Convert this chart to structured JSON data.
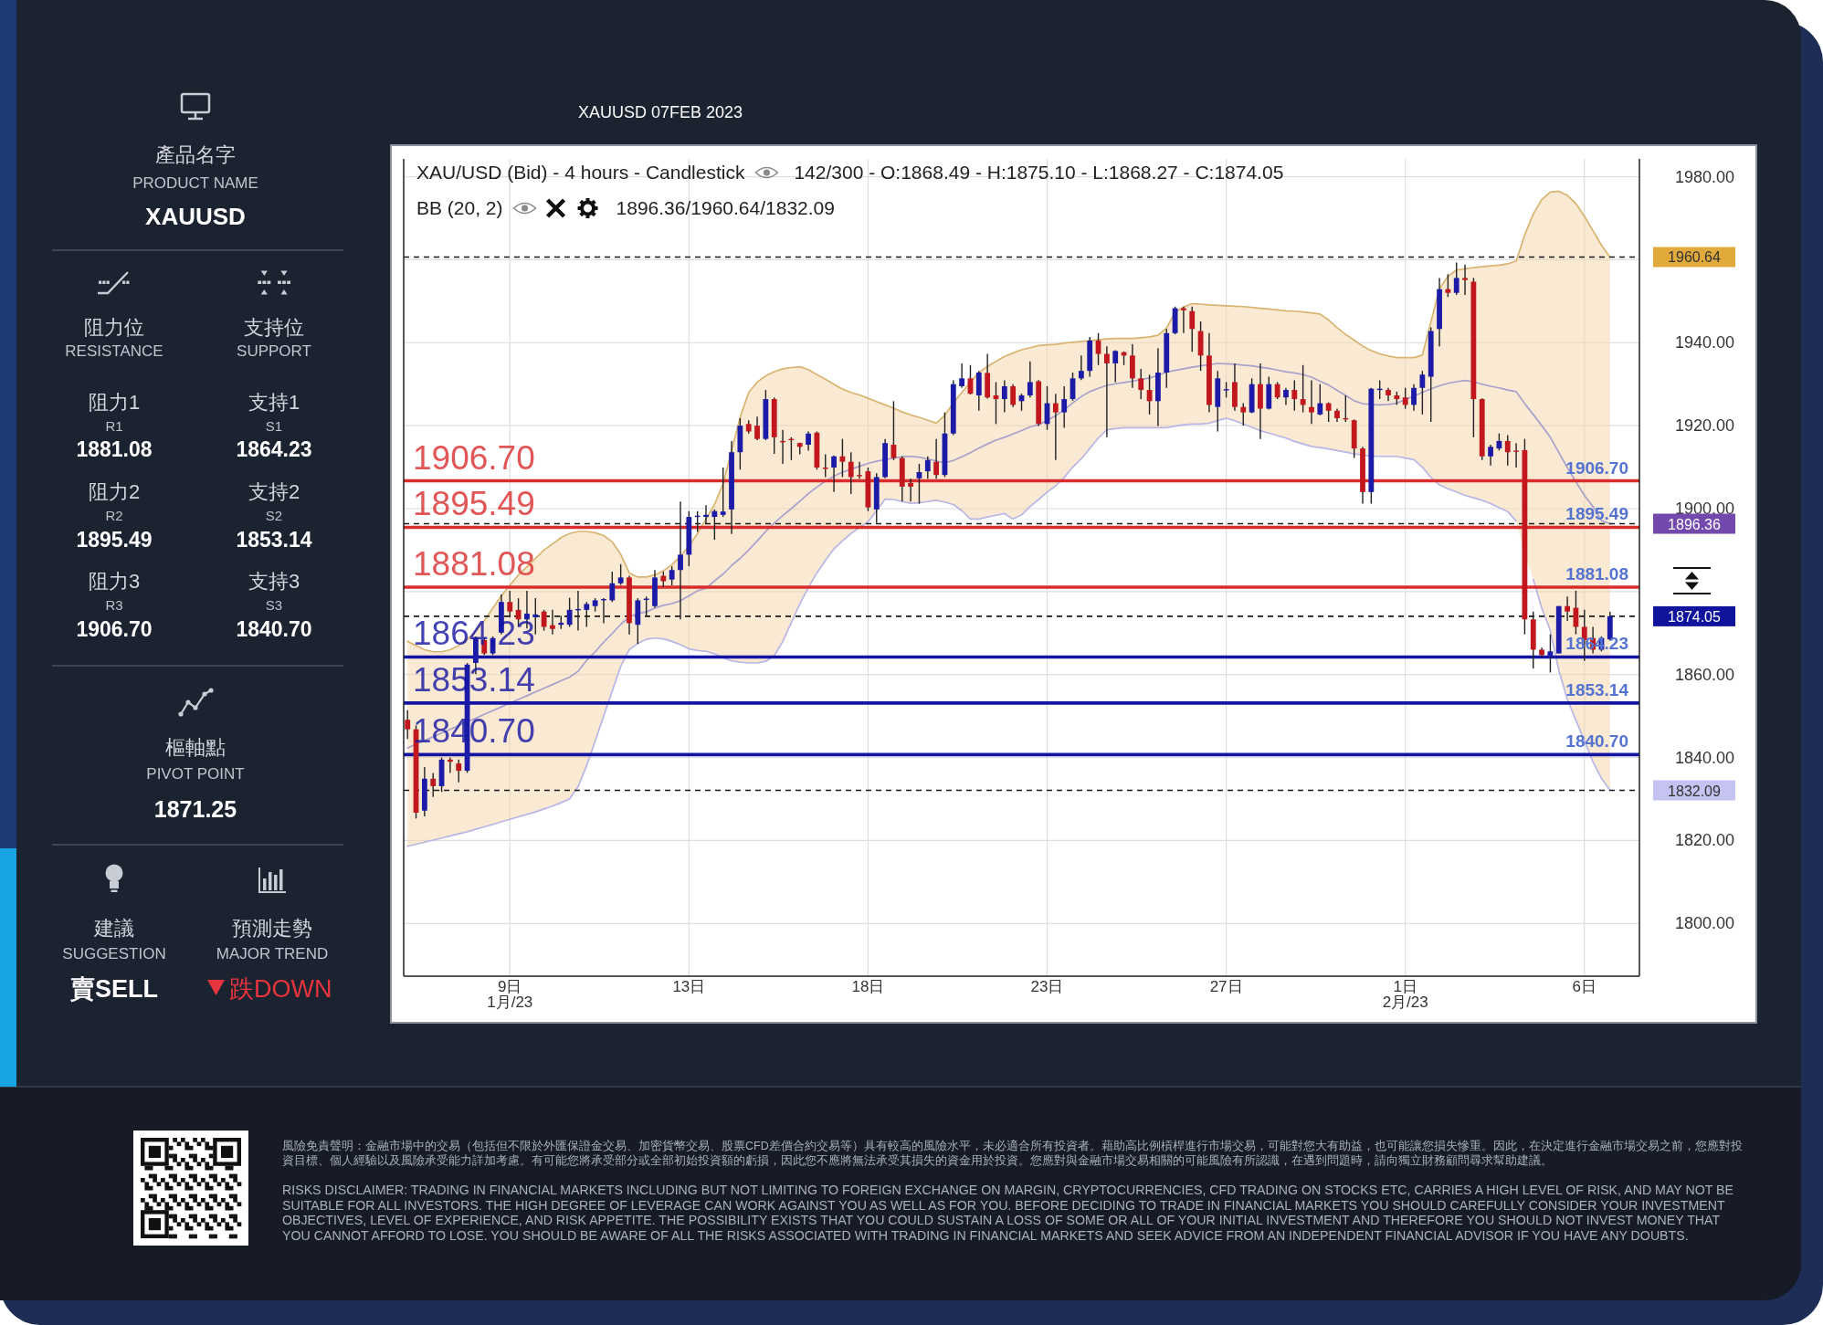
{
  "chart_data": {
    "type": "candlestick",
    "title": "XAUUSD 07FEB 2023",
    "subtitle": "XAU/USD (Bid) - 4 hours - Candlestick",
    "annotations": [
      "142/300 - O:1868.49 - H:1875.10 - L:1868.27 - C:1874.05",
      "BB (20, 2)",
      "1896.36/1960.64/1832.09",
      "產品名字",
      "PRODUCT NAME",
      "XAUUSD",
      "阻力位",
      "RESISTANCE",
      "支持位",
      "SUPPORT",
      "阻力1",
      "R1",
      "1881.08",
      "支持1",
      "S1",
      "1864.23",
      "阻力2",
      "R2",
      "1895.49",
      "支持2",
      "S2",
      "1853.14",
      "阻力3",
      "R3",
      "1906.70",
      "支持3",
      "S3",
      "1840.70",
      "樞軸點",
      "PIVOT POINT",
      "1871.25",
      "建議",
      "SUGGESTION",
      "預測走勢",
      "MAJOR TREND",
      "賣SELL",
      "跌DOWN",
      "風險免責聲明：金融市場中的交易（包括但不限於外匯保證金交易、加密貨幣交易、股票CFD差價合約交易等）具有較高的風險水平，未必適合所有投資者。藉助高比例槓桿進行市場交易，可能對您大有助益，也可能讓您損失慘重。因此，在決定進行金融市場交易之前，您應對投資目標、個人經驗以及風險承受能力詳加考慮。有可能您將承受部分或全部初始投資額的虧損，因此您不應將無法承受其損失的資金用於投資。您應對與金融市場交易相關的可能風險有所認識，在遇到問題時，請向獨立財務顧問尋求幫助建議。",
      "RISKS DISCLAIMER: TRADING IN FINANCIAL MARKETS INCLUDING BUT NOT LIMITING TO FOREIGN EXCHANGE ON MARGIN, CRYPTOCURRENCIES, CFD TRADING ON STOCKS ETC, CARRIES A HIGH LEVEL OF RISK, AND MAY NOT BE SUITABLE FOR ALL INVESTORS. THE HIGH DEGREE OF LEVERAGE CAN WORK AGAINST YOU AS WELL AS FOR YOU. BEFORE DECIDING TO TRADE IN FINANCIAL MARKETS YOU SHOULD CAREFULLY CONSIDER YOUR INVESTMENT OBJECTIVES, LEVEL OF EXPERIENCE, AND RISK APPETITE. THE POSSIBILITY EXISTS THAT YOU COULD SUSTAIN A LOSS OF SOME OR ALL OF YOUR INITIAL INVESTMENT AND THEREFORE YOU SHOULD NOT INVEST MONEY THAT YOU CANNOT AFFORD TO LOSE. YOU SHOULD BE AWARE OF ALL THE RISKS ASSOCIATED WITH TRADING IN FINANCIAL MARKETS AND SEEK ADVICE FROM AN INDEPENDENT FINANCIAL ADVISOR IF YOU HAVE ANY DOUBTS."
    ],
    "categories": [
      null,
      null,
      null,
      null,
      null,
      null,
      null,
      null,
      null,
      null,
      null,
      null,
      "9日\n1月/23",
      null,
      null,
      null,
      null,
      null,
      null,
      null,
      null,
      null,
      null,
      null,
      null,
      null,
      null,
      null,
      null,
      null,
      null,
      null,
      null,
      "13日",
      null,
      null,
      null,
      null,
      null,
      null,
      null,
      null,
      null,
      null,
      null,
      null,
      null,
      null,
      null,
      null,
      null,
      null,
      null,
      null,
      "18日",
      null,
      null,
      null,
      null,
      null,
      null,
      null,
      null,
      null,
      null,
      null,
      null,
      null,
      null,
      null,
      null,
      null,
      null,
      null,
      null,
      "23日",
      null,
      null,
      null,
      null,
      null,
      null,
      null,
      null,
      null,
      null,
      null,
      null,
      null,
      null,
      null,
      null,
      null,
      null,
      null,
      null,
      "27日",
      null,
      null,
      null,
      null,
      null,
      null,
      null,
      null,
      null,
      null,
      null,
      null,
      null,
      null,
      null,
      null,
      null,
      null,
      null,
      null,
      "1日\n2月/23",
      null,
      null,
      null,
      null,
      null,
      null,
      null,
      null,
      null,
      null,
      null,
      null,
      null,
      null,
      null,
      null,
      null,
      null,
      null,
      null,
      "6日",
      null,
      null,
      null
    ],
    "ohlc": [
      [
        1849.1,
        1851.4,
        1844.5,
        1846.8
      ],
      [
        1846.8,
        1847.7,
        1825.3,
        1826.7
      ],
      [
        1827.2,
        1837.7,
        1825.8,
        1834.9
      ],
      [
        1834.9,
        1836.3,
        1830.5,
        1833.1
      ],
      [
        1833.1,
        1840.0,
        1831.7,
        1839.5
      ],
      [
        1839.5,
        1840.0,
        1836.3,
        1839.0
      ],
      [
        1838.6,
        1839.5,
        1834.0,
        1836.8
      ],
      [
        1836.8,
        1862.8,
        1836.3,
        1862.4
      ],
      [
        1862.8,
        1869.2,
        1860.1,
        1868.8
      ],
      [
        1868.3,
        1868.9,
        1864.7,
        1865.1
      ],
      [
        1865.1,
        1869.2,
        1864.7,
        1868.8
      ],
      [
        1870.1,
        1879.3,
        1869.7,
        1877.5
      ],
      [
        1877.5,
        1880.2,
        1873.8,
        1875.2
      ],
      [
        1875.6,
        1878.4,
        1871.5,
        1873.3
      ],
      [
        1873.3,
        1880.2,
        1871.1,
        1874.7
      ],
      [
        1873.8,
        1878.4,
        1869.7,
        1874.5
      ],
      [
        1875.2,
        1875.6,
        1870.6,
        1871.5
      ],
      [
        1871.9,
        1875.6,
        1869.7,
        1871.0
      ],
      [
        1872.0,
        1874.2,
        1871.0,
        1872.5
      ],
      [
        1872.0,
        1878.5,
        1871.5,
        1875.6
      ],
      [
        1875.6,
        1880.2,
        1870.6,
        1875.8
      ],
      [
        1875.6,
        1877.5,
        1871.5,
        1877.0
      ],
      [
        1876.5,
        1878.4,
        1875.2,
        1877.9
      ],
      [
        1878.0,
        1878.4,
        1872.4,
        1878.2
      ],
      [
        1877.9,
        1884.8,
        1877.5,
        1882.0
      ],
      [
        1882.0,
        1886.6,
        1881.6,
        1883.4
      ],
      [
        1883.4,
        1883.8,
        1869.7,
        1872.4
      ],
      [
        1872.0,
        1878.4,
        1867.4,
        1877.9
      ],
      [
        1878.0,
        1878.8,
        1874.2,
        1878.3
      ],
      [
        1876.5,
        1885.2,
        1876.1,
        1883.4
      ],
      [
        1883.8,
        1884.8,
        1881.1,
        1882.5
      ],
      [
        1882.9,
        1886.1,
        1881.5,
        1885.2
      ],
      [
        1885.2,
        1901.7,
        1873.3,
        1888.9
      ],
      [
        1888.9,
        1899.4,
        1886.1,
        1898.0
      ],
      [
        1898.0,
        1899.4,
        1894.4,
        1898.3
      ],
      [
        1898.0,
        1900.8,
        1896.2,
        1898.5
      ],
      [
        1898.0,
        1899.8,
        1892.5,
        1899.4
      ],
      [
        1898.5,
        1909.9,
        1898.0,
        1899.3
      ],
      [
        1899.8,
        1916.3,
        1893.9,
        1913.6
      ],
      [
        1913.6,
        1921.8,
        1909.4,
        1920.0
      ],
      [
        1920.4,
        1921.3,
        1918.1,
        1918.6
      ],
      [
        1920.0,
        1922.2,
        1916.5,
        1916.8
      ],
      [
        1916.8,
        1928.6,
        1916.5,
        1926.4
      ],
      [
        1926.4,
        1926.8,
        1913.2,
        1917.2
      ],
      [
        1916.3,
        1919.0,
        1910.8,
        1916.0
      ],
      [
        1916.8,
        1917.2,
        1911.7,
        1916.6
      ],
      [
        1915.8,
        1915.9,
        1913.1,
        1914.9
      ],
      [
        1915.4,
        1918.6,
        1914.0,
        1918.1
      ],
      [
        1918.3,
        1918.6,
        1909.4,
        1909.9
      ],
      [
        1909.9,
        1913.1,
        1907.6,
        1909.6
      ],
      [
        1909.9,
        1912.8,
        1904.0,
        1912.6
      ],
      [
        1912.6,
        1916.8,
        1907.6,
        1911.3
      ],
      [
        1911.3,
        1913.6,
        1903.5,
        1907.6
      ],
      [
        1908.1,
        1911.3,
        1907.2,
        1907.8
      ],
      [
        1909.0,
        1909.9,
        1899.4,
        1900.3
      ],
      [
        1899.8,
        1908.5,
        1896.6,
        1907.6
      ],
      [
        1907.6,
        1916.8,
        1907.3,
        1915.8
      ],
      [
        1915.4,
        1925.9,
        1911.7,
        1912.2
      ],
      [
        1912.2,
        1912.6,
        1901.7,
        1905.3
      ],
      [
        1906.2,
        1907.2,
        1901.7,
        1905.3
      ],
      [
        1907.3,
        1910.8,
        1901.2,
        1908.8
      ],
      [
        1909.0,
        1912.6,
        1907.2,
        1911.7
      ],
      [
        1911.3,
        1916.8,
        1907.2,
        1908.1
      ],
      [
        1908.1,
        1923.2,
        1907.6,
        1918.1
      ],
      [
        1918.1,
        1930.9,
        1917.7,
        1930.0
      ],
      [
        1929.5,
        1935.0,
        1929.1,
        1931.4
      ],
      [
        1931.4,
        1934.6,
        1927.5,
        1927.7
      ],
      [
        1927.3,
        1933.2,
        1923.6,
        1932.8
      ],
      [
        1932.7,
        1937.3,
        1926.5,
        1926.8
      ],
      [
        1927.3,
        1930.5,
        1920.4,
        1926.4
      ],
      [
        1926.4,
        1930.9,
        1923.2,
        1929.5
      ],
      [
        1929.5,
        1930.0,
        1924.5,
        1925.0
      ],
      [
        1925.9,
        1927.7,
        1923.6,
        1927.3
      ],
      [
        1927.3,
        1935.5,
        1926.8,
        1930.5
      ],
      [
        1930.7,
        1931.0,
        1919.9,
        1920.4
      ],
      [
        1920.4,
        1929.5,
        1919.0,
        1925.4
      ],
      [
        1925.4,
        1927.7,
        1911.7,
        1923.2
      ],
      [
        1923.2,
        1929.5,
        1919.5,
        1926.4
      ],
      [
        1926.4,
        1932.8,
        1926.0,
        1931.4
      ],
      [
        1931.4,
        1936.9,
        1931.0,
        1933.2
      ],
      [
        1933.2,
        1941.4,
        1931.8,
        1940.5
      ],
      [
        1940.5,
        1942.3,
        1934.6,
        1937.3
      ],
      [
        1937.3,
        1939.1,
        1917.2,
        1935.0
      ],
      [
        1935.0,
        1938.2,
        1930.5,
        1938.0
      ],
      [
        1937.7,
        1937.9,
        1934.6,
        1936.9
      ],
      [
        1936.9,
        1939.6,
        1929.1,
        1931.4
      ],
      [
        1931.4,
        1933.7,
        1926.4,
        1928.6
      ],
      [
        1928.6,
        1932.3,
        1922.7,
        1925.9
      ],
      [
        1925.9,
        1938.7,
        1919.9,
        1932.8
      ],
      [
        1932.8,
        1943.3,
        1929.1,
        1942.3
      ],
      [
        1942.3,
        1948.7,
        1942.0,
        1948.3
      ],
      [
        1948.3,
        1948.7,
        1942.3,
        1947.8
      ],
      [
        1947.6,
        1948.7,
        1937.8,
        1943.3
      ],
      [
        1942.8,
        1945.1,
        1933.2,
        1936.9
      ],
      [
        1936.9,
        1942.3,
        1923.2,
        1925.0
      ],
      [
        1924.5,
        1933.2,
        1918.6,
        1931.4
      ],
      [
        1928.6,
        1930.5,
        1926.8,
        1928.8
      ],
      [
        1930.5,
        1935.0,
        1923.6,
        1924.5
      ],
      [
        1924.5,
        1925.4,
        1920.0,
        1923.2
      ],
      [
        1923.2,
        1931.4,
        1923.0,
        1930.0
      ],
      [
        1930.0,
        1935.0,
        1916.8,
        1924.1
      ],
      [
        1924.1,
        1931.8,
        1923.9,
        1930.0
      ],
      [
        1930.0,
        1930.5,
        1926.4,
        1926.8
      ],
      [
        1926.8,
        1929.1,
        1925.0,
        1928.6
      ],
      [
        1928.6,
        1930.9,
        1923.6,
        1926.4
      ],
      [
        1926.4,
        1934.6,
        1923.2,
        1925.0
      ],
      [
        1924.5,
        1930.9,
        1920.4,
        1923.2
      ],
      [
        1922.7,
        1930.0,
        1922.5,
        1925.4
      ],
      [
        1925.4,
        1925.6,
        1920.9,
        1923.6
      ],
      [
        1923.6,
        1924.1,
        1920.9,
        1921.8
      ],
      [
        1921.8,
        1927.3,
        1920.9,
        1921.5
      ],
      [
        1921.3,
        1921.5,
        1912.2,
        1914.5
      ],
      [
        1914.5,
        1914.9,
        1901.2,
        1904.0
      ],
      [
        1904.0,
        1929.1,
        1901.2,
        1928.9
      ],
      [
        1928.6,
        1930.9,
        1926.4,
        1928.9
      ],
      [
        1928.6,
        1929.1,
        1925.9,
        1927.3
      ],
      [
        1927.3,
        1928.2,
        1925.0,
        1926.4
      ],
      [
        1926.8,
        1929.1,
        1924.1,
        1925.0
      ],
      [
        1925.0,
        1930.0,
        1923.6,
        1929.1
      ],
      [
        1929.1,
        1933.2,
        1922.7,
        1932.3
      ],
      [
        1931.8,
        1943.7,
        1920.9,
        1942.8
      ],
      [
        1943.3,
        1955.6,
        1939.1,
        1952.9
      ],
      [
        1952.9,
        1956.5,
        1951.0,
        1952.0
      ],
      [
        1952.0,
        1959.3,
        1951.5,
        1955.6
      ],
      [
        1955.6,
        1958.8,
        1951.5,
        1955.1
      ],
      [
        1954.7,
        1955.6,
        1917.2,
        1926.4
      ],
      [
        1926.4,
        1926.6,
        1911.7,
        1912.6
      ],
      [
        1912.6,
        1915.4,
        1910.4,
        1914.9
      ],
      [
        1914.5,
        1918.1,
        1914.0,
        1916.3
      ],
      [
        1916.3,
        1917.7,
        1910.4,
        1913.6
      ],
      [
        1914.0,
        1915.8,
        1909.9,
        1913.8
      ],
      [
        1914.1,
        1916.8,
        1869.7,
        1873.3
      ],
      [
        1873.3,
        1875.2,
        1861.5,
        1866.0
      ],
      [
        1866.0,
        1866.5,
        1864.2,
        1864.7
      ],
      [
        1864.2,
        1869.7,
        1860.5,
        1865.6
      ],
      [
        1865.1,
        1876.5,
        1865.1,
        1876.5
      ],
      [
        1876.5,
        1878.8,
        1872.9,
        1875.2
      ],
      [
        1876.1,
        1880.2,
        1869.7,
        1871.5
      ],
      [
        1871.5,
        1875.6,
        1863.3,
        1868.3
      ],
      [
        1868.8,
        1871.5,
        1865.1,
        1866.0
      ],
      [
        1866.0,
        1869.2,
        1865.6,
        1868.8
      ],
      [
        1868.49,
        1875.1,
        1868.27,
        1874.05
      ]
    ],
    "series": [
      {
        "type": "line",
        "color": "#d8b470",
        "values": [
          1868,
          1867,
          1866,
          1865.5,
          1865.5,
          1866,
          1867,
          1868.5,
          1870.5,
          1873,
          1876,
          1879,
          1881.5,
          1884,
          1886,
          1888,
          1890,
          1891.5,
          1893,
          1894,
          1894.5,
          1894.5,
          1894.2,
          1893.5,
          1892,
          1889,
          1884.5,
          1883.5,
          1883.5,
          1884,
          1885,
          1886.5,
          1888.5,
          1891,
          1894,
          1897.5,
          1901,
          1906,
          1914,
          1922,
          1928,
          1930.5,
          1932,
          1933,
          1933.7,
          1934,
          1934.2,
          1933.5,
          1932.3,
          1931.2,
          1930,
          1928.8,
          1928,
          1927.4,
          1926.6,
          1925.8,
          1925,
          1924.2,
          1923.3,
          1922.6,
          1922,
          1921.3,
          1920.6,
          1922.5,
          1925.5,
          1928,
          1930.5,
          1932.8,
          1934.3,
          1935.5,
          1936.7,
          1937.5,
          1938.3,
          1938.8,
          1939.3,
          1939.5,
          1939.6,
          1939.9,
          1940.1,
          1940.3,
          1940.5,
          1940.7,
          1940.9,
          1941,
          1941,
          1941,
          1941.2,
          1941.4,
          1941.8,
          1943.5,
          1947.4,
          1948.6,
          1949.4,
          1949.3,
          1949.1,
          1949,
          1948.9,
          1948.8,
          1948.7,
          1948.5,
          1948.3,
          1948.1,
          1947.9,
          1947.7,
          1947.6,
          1947.4,
          1947.2,
          1946.9,
          1945.5,
          1943.6,
          1942,
          1940.6,
          1939.2,
          1938.1,
          1937.3,
          1936.8,
          1936.4,
          1936.4,
          1936.4,
          1937,
          1945,
          1953,
          1956,
          1957.5,
          1957.8,
          1958.1,
          1958.3,
          1958.5,
          1958.7,
          1959,
          1959.7,
          1966,
          1971,
          1974.5,
          1976.3,
          1976.5,
          1975.5,
          1973.5,
          1970.5,
          1967,
          1963.5,
          1960.64
        ]
      },
      {
        "type": "line",
        "color": "#a7a1cc",
        "values": [
          1842.3,
          1843.2,
          1844.1,
          1845,
          1845.9,
          1846.8,
          1847.7,
          1848.6,
          1849.5,
          1850.4,
          1851.3,
          1852.2,
          1853.1,
          1854,
          1854.9,
          1855.8,
          1856.7,
          1857.6,
          1858.5,
          1859.4,
          1860.8,
          1863.4,
          1865.5,
          1867.8,
          1869.9,
          1872.1,
          1873.9,
          1874.7,
          1875.1,
          1876,
          1876.7,
          1877.1,
          1877.8,
          1879,
          1880.2,
          1880.8,
          1882.6,
          1884.2,
          1886.3,
          1888,
          1890,
          1892.2,
          1894.5,
          1896.5,
          1898.3,
          1900,
          1901.8,
          1903.6,
          1905.2,
          1906.6,
          1907.8,
          1908.8,
          1909.5,
          1910.2,
          1910.9,
          1911.4,
          1911.8,
          1912.2,
          1912.5,
          1912.6,
          1912.4,
          1912,
          1911.5,
          1911,
          1911.6,
          1912.5,
          1913.5,
          1914.6,
          1915.6,
          1916.5,
          1917.2,
          1918,
          1918.8,
          1919.7,
          1920.2,
          1921.3,
          1922.4,
          1923.8,
          1925.5,
          1927,
          1928.2,
          1929,
          1929.7,
          1930.1,
          1930.4,
          1930.7,
          1931.1,
          1931.5,
          1932.1,
          1932.9,
          1933.3,
          1933.7,
          1934.1,
          1934.4,
          1934.7,
          1935,
          1934.9,
          1934.8,
          1934.6,
          1934.4,
          1934.1,
          1933.8,
          1933.4,
          1933,
          1932.7,
          1932.3,
          1931.7,
          1930.7,
          1929.8,
          1928.5,
          1927.3,
          1926,
          1925.3,
          1925.1,
          1925,
          1925.1,
          1925.4,
          1926.3,
          1927.1,
          1928,
          1928.9,
          1929.6,
          1930.2,
          1930.6,
          1930.9,
          1930.6,
          1930,
          1929.5,
          1929.1,
          1928.6,
          1928.2,
          1925.3,
          1922.7,
          1920,
          1917.2,
          1913.5,
          1909.9,
          1906.5,
          1903.2,
          1900.5,
          1897.1,
          1896.36
        ],
        "lower": [
          1818.6,
          1819.1,
          1819.6,
          1820.1,
          1820.6,
          1821.1,
          1821.6,
          1822.1,
          1822.7,
          1823.3,
          1823.9,
          1824.5,
          1825.1,
          1825.7,
          1826.3,
          1826.9,
          1827.6,
          1828.3,
          1829.1,
          1830,
          1833,
          1838,
          1844,
          1850,
          1856,
          1862,
          1866,
          1867.5,
          1868.5,
          1868.8,
          1868.6,
          1868,
          1867.2,
          1866.2,
          1865.8,
          1865.6,
          1865,
          1864,
          1863.3,
          1863,
          1862.8,
          1862.8,
          1863.2,
          1864.5,
          1868,
          1872.5,
          1877,
          1881,
          1884.5,
          1887.5,
          1890.3,
          1892.2,
          1894,
          1895.5,
          1896.8,
          1899.5,
          1902.3,
          1902.2,
          1901.7,
          1901.3,
          1901.4,
          1901.7,
          1902,
          1901.6,
          1901,
          1899.5,
          1897.5,
          1897.5,
          1898,
          1898.4,
          1898.8,
          1897.5,
          1898.5,
          1900.5,
          1902.2,
          1904,
          1905.5,
          1907.5,
          1910,
          1912,
          1914.5,
          1917,
          1919,
          1919.3,
          1919.5,
          1919.5,
          1919.5,
          1919.5,
          1919.5,
          1919.5,
          1919.9,
          1920.2,
          1920.4,
          1920.4,
          1920.6,
          1921.2,
          1921.8,
          1921.2,
          1920.4,
          1919.6,
          1918.8,
          1918.2,
          1917.6,
          1917,
          1916.2,
          1915.6,
          1915,
          1914.7,
          1914.4,
          1914,
          1913.6,
          1913.2,
          1912.9,
          1912.7,
          1912.6,
          1912.6,
          1912.6,
          1912.2,
          1911.8,
          1910,
          1907.5,
          1905.7,
          1904.8,
          1904,
          1903.2,
          1902.6,
          1902,
          1901.2,
          1900.2,
          1899.3,
          1897,
          1889,
          1883,
          1876,
          1870.6,
          1861,
          1854,
          1849,
          1844,
          1839,
          1835,
          1832.09
        ],
        "upper": [
          1868,
          1867,
          1866,
          1865.5,
          1865.5,
          1866,
          1867,
          1868.5,
          1870.5,
          1873,
          1876,
          1879,
          1881.5,
          1884,
          1886,
          1888,
          1890,
          1891.5,
          1893,
          1894,
          1894.5,
          1894.5,
          1894.2,
          1893.5,
          1892,
          1889,
          1884.5,
          1883.5,
          1883.5,
          1884,
          1885,
          1886.5,
          1888.5,
          1891,
          1894,
          1897.5,
          1901,
          1906,
          1914,
          1922,
          1928,
          1930.5,
          1932,
          1933,
          1933.7,
          1934,
          1934.2,
          1933.5,
          1932.3,
          1931.2,
          1930,
          1928.8,
          1928,
          1927.4,
          1926.6,
          1925.8,
          1925,
          1924.2,
          1923.3,
          1922.6,
          1922,
          1921.3,
          1920.6,
          1922.5,
          1925.5,
          1928,
          1930.5,
          1932.8,
          1934.3,
          1935.5,
          1936.7,
          1937.5,
          1938.3,
          1938.8,
          1939.3,
          1939.5,
          1939.6,
          1939.9,
          1940.1,
          1940.3,
          1940.5,
          1940.7,
          1940.9,
          1941,
          1941,
          1941,
          1941.2,
          1941.4,
          1941.8,
          1943.5,
          1947.4,
          1948.6,
          1949.4,
          1949.3,
          1949.1,
          1949,
          1948.9,
          1948.8,
          1948.7,
          1948.5,
          1948.3,
          1948.1,
          1947.9,
          1947.7,
          1947.6,
          1947.4,
          1947.2,
          1946.9,
          1945.5,
          1943.6,
          1942,
          1940.6,
          1939.2,
          1938.1,
          1937.3,
          1936.8,
          1936.4,
          1936.4,
          1936.4,
          1937,
          1945,
          1953,
          1956,
          1957.5,
          1957.8,
          1958.1,
          1958.3,
          1958.5,
          1958.7,
          1959,
          1959.7,
          1966,
          1971,
          1974.5,
          1976.3,
          1976.5,
          1975.5,
          1973.5,
          1970.5,
          1967,
          1963.5,
          1960.64
        ]
      },
      {
        "type": "line",
        "color": "#b9b6e6",
        "values": [
          1818.6,
          1819.1,
          1819.6,
          1820.1,
          1820.6,
          1821.1,
          1821.6,
          1822.1,
          1822.7,
          1823.3,
          1823.9,
          1824.5,
          1825.1,
          1825.7,
          1826.3,
          1826.9,
          1827.6,
          1828.3,
          1829.1,
          1830,
          1833,
          1838,
          1844,
          1850,
          1856,
          1862,
          1866,
          1867.5,
          1868.5,
          1868.8,
          1868.6,
          1868,
          1867.2,
          1866.2,
          1865.8,
          1865.6,
          1865,
          1864,
          1863.3,
          1863,
          1862.8,
          1862.8,
          1863.2,
          1864.5,
          1868,
          1872.5,
          1877,
          1881,
          1884.5,
          1887.5,
          1890.3,
          1892.2,
          1894,
          1895.5,
          1896.8,
          1899.5,
          1902.3,
          1902.2,
          1901.7,
          1901.3,
          1901.4,
          1901.7,
          1902,
          1901.6,
          1901,
          1899.5,
          1897.5,
          1897.5,
          1898,
          1898.4,
          1898.8,
          1897.5,
          1898.5,
          1900.5,
          1902.2,
          1904,
          1905.5,
          1907.5,
          1910,
          1912,
          1914.5,
          1917,
          1919,
          1919.3,
          1919.5,
          1919.5,
          1919.5,
          1919.5,
          1919.5,
          1919.5,
          1919.9,
          1920.2,
          1920.4,
          1920.4,
          1920.6,
          1921.2,
          1921.8,
          1921.2,
          1920.4,
          1919.6,
          1918.8,
          1918.2,
          1917.6,
          1917,
          1916.2,
          1915.6,
          1915,
          1914.7,
          1914.4,
          1914,
          1913.6,
          1913.2,
          1912.9,
          1912.7,
          1912.6,
          1912.6,
          1912.6,
          1912.2,
          1911.8,
          1910,
          1907.5,
          1905.7,
          1904.8,
          1904,
          1903.2,
          1902.6,
          1902,
          1901.2,
          1900.2,
          1899.3,
          1897,
          null,
          1883,
          1876,
          1870.6,
          1861,
          1854,
          1849,
          1844,
          1839,
          1835,
          1832.09
        ]
      }
    ],
    "ylim": [
      1787.3,
      1984.3
    ],
    "yticks": [
      {
        "value": 1800,
        "label": "1800.00"
      },
      {
        "value": 1820,
        "label": "1820.00"
      },
      {
        "value": 1840,
        "label": "1840.00"
      },
      {
        "value": 1860,
        "label": "1860.00"
      },
      {
        "value": 1880,
        "label": null
      },
      {
        "value": 1900,
        "label": "1900.00"
      },
      {
        "value": 1920,
        "label": "1920.00"
      },
      {
        "value": 1940,
        "label": "1940.00"
      },
      {
        "value": 1960,
        "label": null
      },
      {
        "value": 1980,
        "label": "1980.00"
      }
    ],
    "grid": true,
    "ref_lines": [
      {
        "axis": "y",
        "value": 1906.7,
        "label": "1906.70",
        "color": "#d92c2c",
        "line_style": "solid"
      },
      {
        "axis": "y",
        "value": 1895.49,
        "label": "1895.49",
        "color": "#d92c2c",
        "line_style": "solid"
      },
      {
        "axis": "y",
        "value": 1881.08,
        "label": "1881.08",
        "color": "#d92c2c",
        "line_style": "solid"
      },
      {
        "axis": "y",
        "value": 1864.23,
        "label": "1864.23",
        "color": "#1414a3",
        "line_style": "solid"
      },
      {
        "axis": "y",
        "value": 1853.14,
        "label": "1853.14",
        "color": "#1414a3",
        "line_style": "solid"
      },
      {
        "axis": "y",
        "value": 1840.7,
        "label": "1840.70",
        "color": "#1414a3",
        "line_style": "solid"
      },
      {
        "axis": "y",
        "value": 1960.64,
        "label": "1960.64",
        "color": "#1a1a1a",
        "line_style": "dashed"
      },
      {
        "axis": "y",
        "value": 1896.36,
        "label": "1896.36",
        "color": "#1a1a1a",
        "line_style": "dashed"
      },
      {
        "axis": "y",
        "value": 1874.05,
        "label": "1874.05",
        "color": "#1a1a1a",
        "line_style": "dashed"
      },
      {
        "axis": "y",
        "value": 1832.09,
        "label": "1832.09",
        "color": "#1a1a1a",
        "line_style": "dashed"
      }
    ]
  }
}
